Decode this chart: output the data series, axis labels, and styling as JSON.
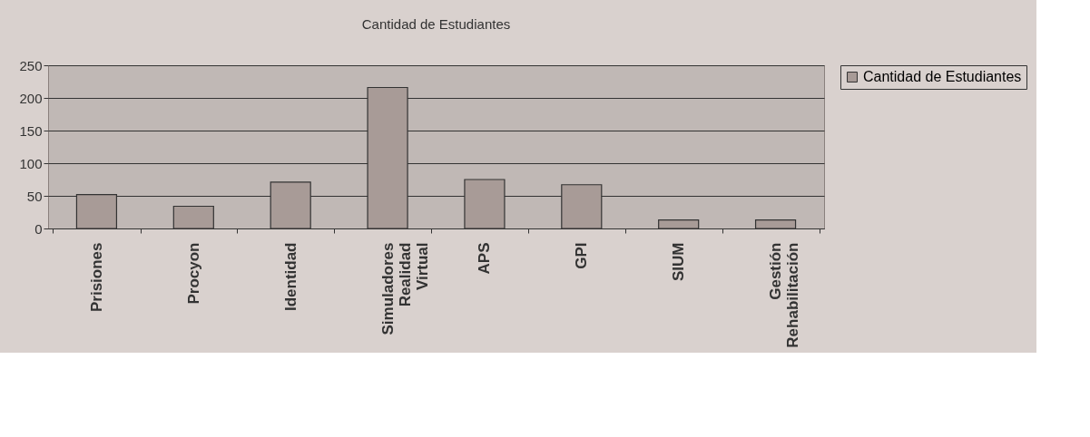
{
  "chart_data": {
    "type": "bar",
    "title": "Cantidad de Estudiantes",
    "categories": [
      "Prisiones",
      "Procyon",
      "Identidad",
      "Simuladores Realidad Virtual",
      "APS",
      "GPI",
      "SIUM",
      "Gestión Rehabilitación"
    ],
    "series": [
      {
        "name": "Cantidad de Estudiantes",
        "color": "#a89b97",
        "values": [
          52,
          34,
          71,
          216,
          75,
          67,
          13,
          13
        ]
      }
    ],
    "ylim": [
      0,
      250
    ],
    "yticks": [
      0,
      50,
      100,
      150,
      200,
      250
    ],
    "grid": "y",
    "legend": "right"
  }
}
